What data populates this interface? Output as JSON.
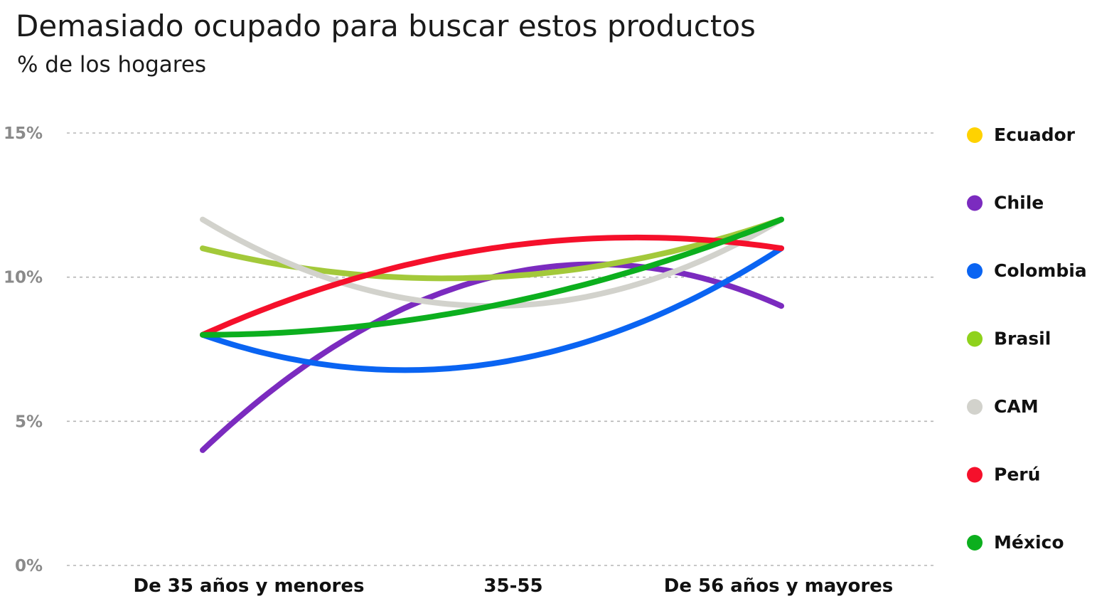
{
  "chart_data": {
    "type": "line",
    "title": "Demasiado ocupado para buscar estos productos",
    "subtitle": "% de los hogares",
    "categories": [
      "De 35 años y menores",
      "35-55",
      "De 56 años y mayores"
    ],
    "yticks": [
      0,
      5,
      10,
      15
    ],
    "ytick_labels": [
      "0%",
      "5%",
      "10%",
      "15%"
    ],
    "ylim": [
      0,
      15
    ],
    "grid": true,
    "legend_position": "right",
    "smooth": true,
    "series": [
      {
        "name": "Ecuador",
        "color": "#ffd200",
        "values": [
          null,
          null,
          null
        ]
      },
      {
        "name": "Chile",
        "color": "#7b2bbf",
        "values": [
          4,
          10,
          9
        ]
      },
      {
        "name": "Colombia",
        "color": "#0a64f2",
        "values": [
          8,
          7,
          11
        ]
      },
      {
        "name": "Brasil",
        "color": "#a3c93a",
        "values": [
          11,
          10,
          12
        ]
      },
      {
        "name": "CAM",
        "color": "#d2d2cc",
        "values": [
          12,
          9,
          12
        ]
      },
      {
        "name": "Perú",
        "color": "#f5102b",
        "values": [
          8,
          11,
          11
        ]
      },
      {
        "name": "México",
        "color": "#0caf1e",
        "values": [
          8,
          9,
          12
        ]
      }
    ],
    "legend_colors": [
      "#ffd200",
      "#7b2bbf",
      "#0a64f2",
      "#8fd21c",
      "#d2d2cc",
      "#f5102b",
      "#0caf1e"
    ]
  }
}
